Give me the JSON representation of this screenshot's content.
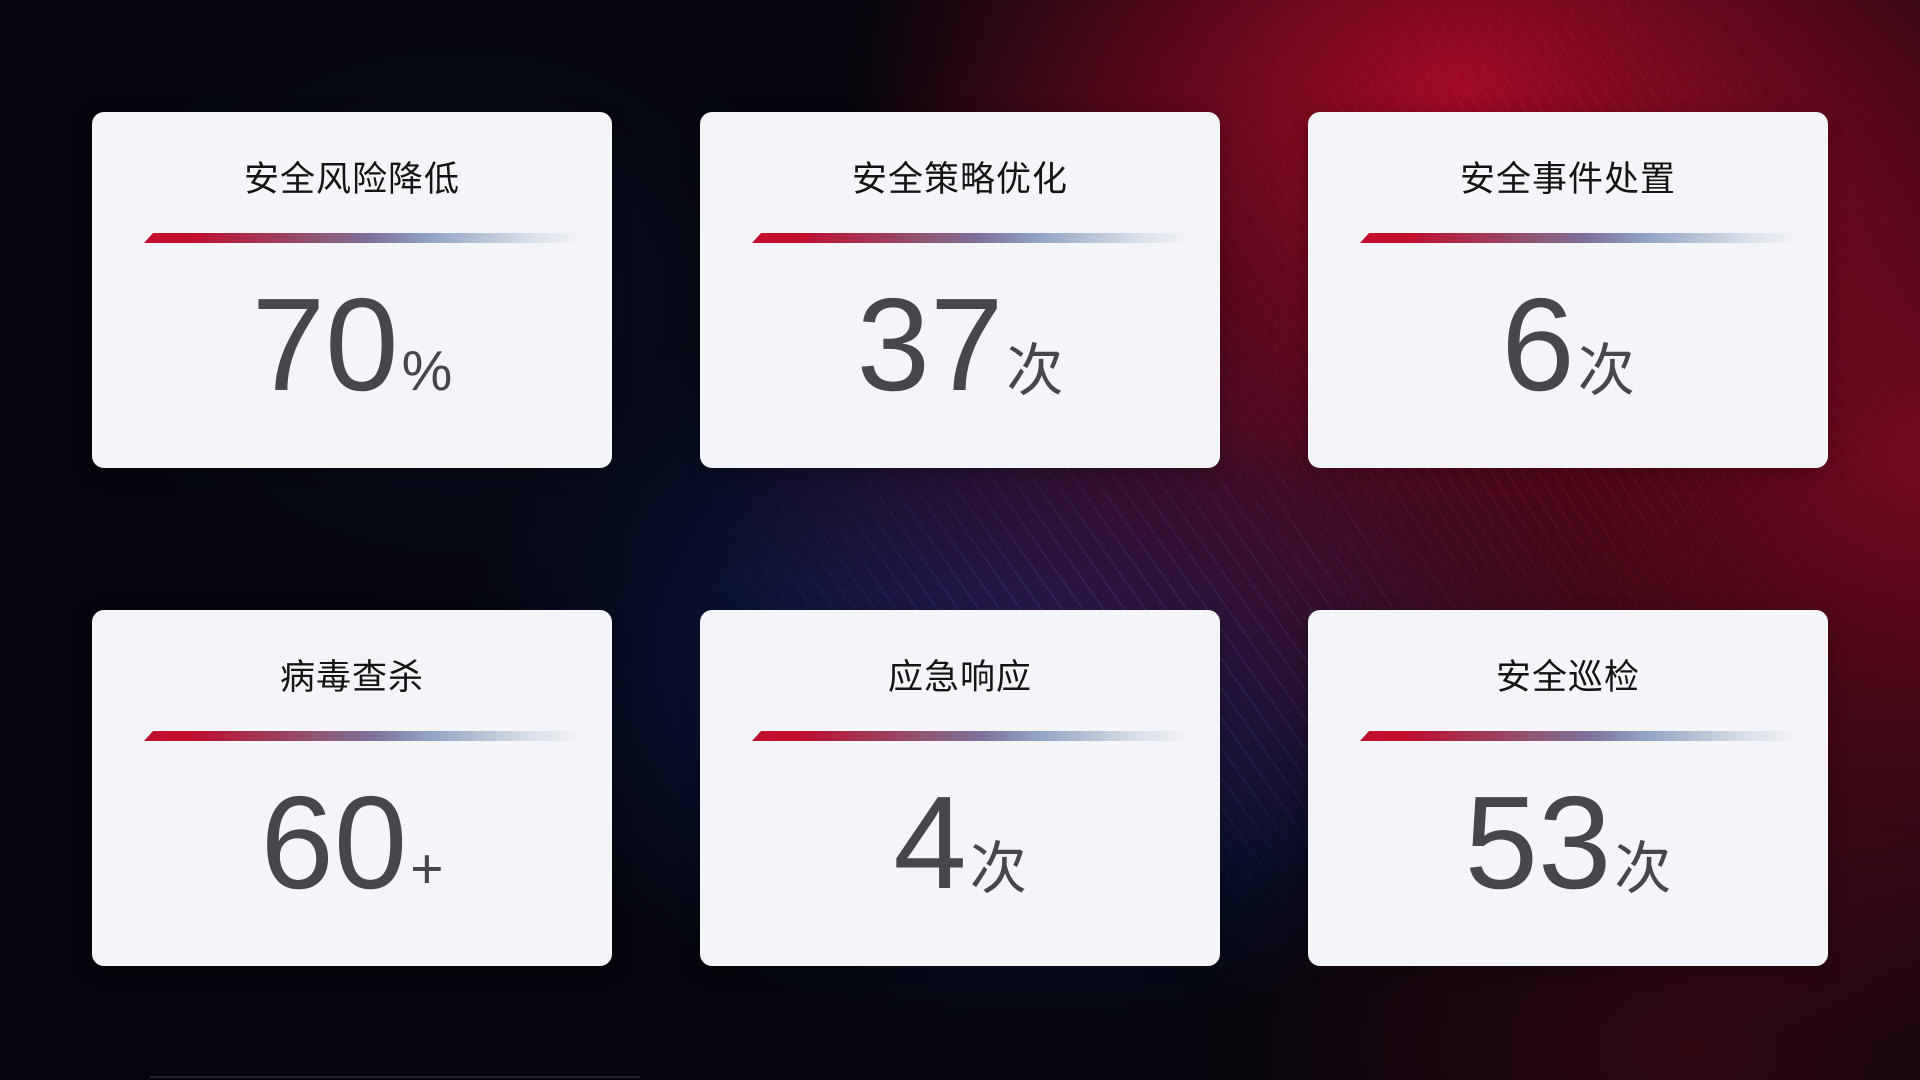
{
  "colors": {
    "card_bg": "#f4f5f8",
    "title_color": "#141414",
    "number_color": "#47464a",
    "divider_red": "#c30d2f",
    "divider_blue": "#8fa0c2",
    "background_dark": "#05060d",
    "background_red_glow": "#a60a24",
    "background_blue_glow": "#112672"
  },
  "cards": [
    {
      "title": "安全风险降低",
      "value": "70",
      "unit": "%"
    },
    {
      "title": "安全策略优化",
      "value": "37",
      "unit": "次"
    },
    {
      "title": "安全事件处置",
      "value": "6",
      "unit": "次"
    },
    {
      "title": "病毒查杀",
      "value": "60",
      "unit": "+"
    },
    {
      "title": "应急响应",
      "value": "4",
      "unit": "次"
    },
    {
      "title": "安全巡检",
      "value": "53",
      "unit": "次"
    }
  ]
}
